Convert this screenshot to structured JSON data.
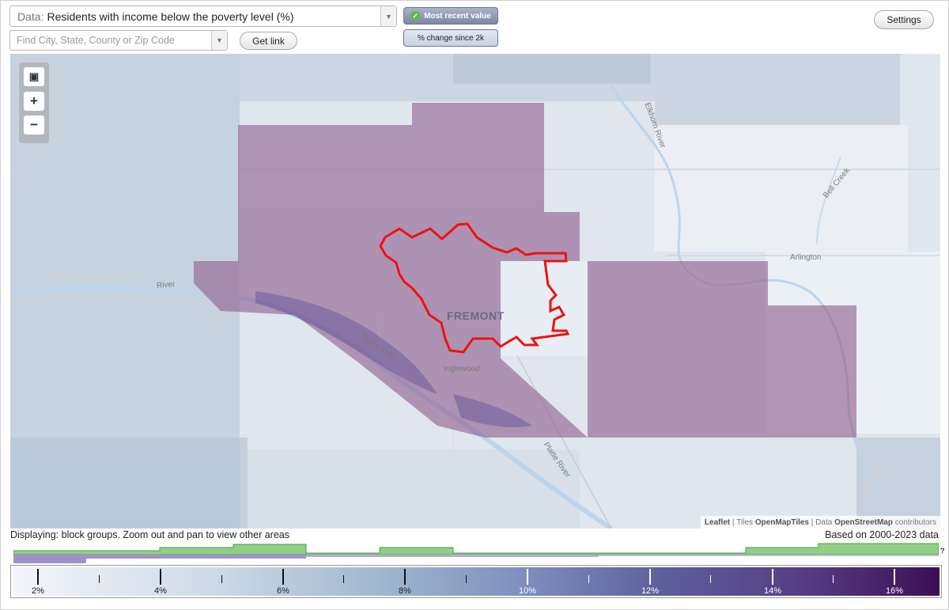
{
  "controls": {
    "data_label": "Data:",
    "data_value": "Residents with income below the poverty level (%)",
    "search_placeholder": "Find City, State, County or Zip Code",
    "get_link_label": "Get link",
    "settings_label": "Settings",
    "mode_active_label": "Most recent value",
    "mode_inactive_label": "% change since 2k"
  },
  "map": {
    "city_label": "FREMONT",
    "labels": [
      {
        "name": "inglewood",
        "text": "Inglewood"
      },
      {
        "name": "arlington",
        "text": "Arlington"
      },
      {
        "name": "bell-creek",
        "text": "Bell Creek"
      },
      {
        "name": "elkhorn-river",
        "text": "Elkhorn River"
      },
      {
        "name": "platte-river",
        "text": "Platte River"
      },
      {
        "name": "platte-river-2",
        "text": "Platte River"
      },
      {
        "name": "river-west",
        "text": "River"
      }
    ],
    "zoom_fit_icon": "fullscreen-icon",
    "zoom_in_label": "+",
    "zoom_out_label": "−",
    "attribution": {
      "leaflet": "Leaflet",
      "tiles_prefix": "Tiles",
      "tiles_name": "OpenMapTiles",
      "data_prefix": "Data",
      "data_name": "OpenStreetMap",
      "contributors": "contributors"
    }
  },
  "footer": {
    "display_note": "Displaying: block groups. Zoom out and pan to view other areas",
    "based_note": "Based on 2000-2023 data",
    "unknown_mark": "?"
  },
  "legend": {
    "labels": [
      "2%",
      "4%",
      "6%",
      "8%",
      "10%",
      "12%",
      "14%",
      "16%"
    ],
    "colors": {
      "low": "#f4f6fb",
      "high": "#3c0f54"
    }
  },
  "colors": {
    "highlight_outline": "#ee1111",
    "region_fill": "#8e5c8d",
    "histogram_green": "#8fcf86",
    "histogram_purple": "#9d92c9"
  }
}
